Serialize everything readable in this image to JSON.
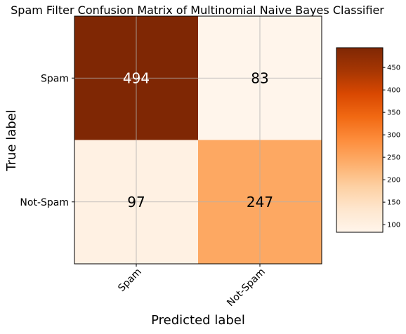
{
  "chart_data": {
    "type": "heatmap",
    "title": "Spam Filter Confusion Matrix of Multinomial Naive Bayes Classifier",
    "xlabel": "Predicted label",
    "ylabel": "True label",
    "x_categories": [
      "Spam",
      "Not-Spam"
    ],
    "y_categories": [
      "Spam",
      "Not-Spam"
    ],
    "values": [
      [
        494,
        83
      ],
      [
        97,
        247
      ]
    ],
    "colormap": "Oranges",
    "grid": true,
    "colorbar": {
      "range": [
        83,
        494
      ],
      "ticks": [
        100,
        150,
        200,
        250,
        300,
        350,
        400,
        450
      ]
    }
  }
}
